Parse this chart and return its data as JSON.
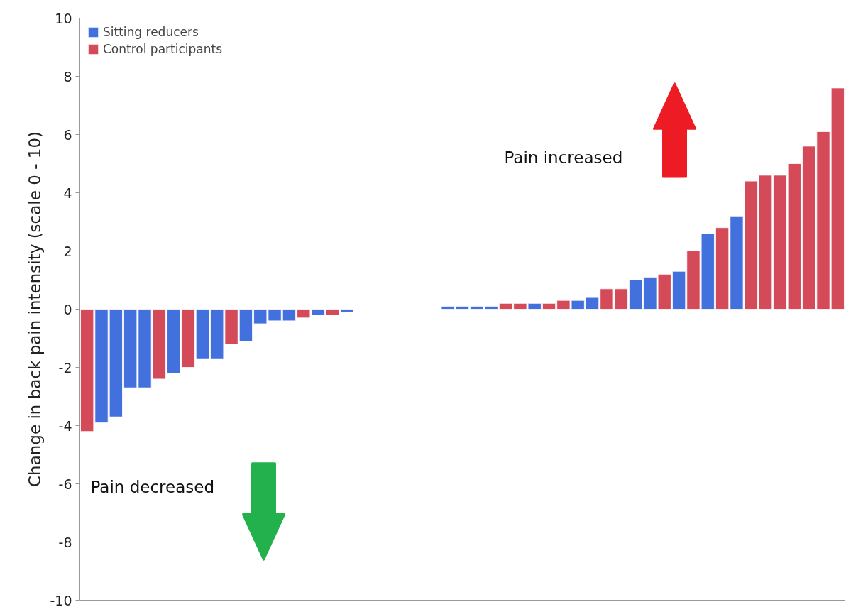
{
  "chart_data": {
    "type": "bar",
    "ylabel": "Change in back pain intensity (scale 0 - 10)",
    "categories": [
      null,
      null,
      null,
      null,
      null,
      null,
      null,
      null,
      null,
      null,
      null,
      null,
      null,
      null,
      null,
      null,
      null,
      null,
      null,
      null,
      null,
      null,
      null,
      null,
      null,
      null,
      null,
      null,
      null,
      null,
      null,
      null,
      null,
      null,
      null,
      null,
      null,
      null,
      null,
      null,
      null,
      null,
      null,
      null,
      null,
      null,
      null,
      null,
      null,
      null,
      null,
      null,
      null
    ],
    "series": [
      {
        "name": "Sitting reducers",
        "color": "#4270dd",
        "values": [
          null,
          -3.9,
          -3.7,
          -2.7,
          -2.7,
          null,
          -2.2,
          null,
          -1.7,
          -1.7,
          null,
          -1.1,
          -0.5,
          -0.4,
          -0.4,
          null,
          -0.2,
          null,
          -0.1,
          null,
          null,
          null,
          null,
          null,
          null,
          0.1,
          0.1,
          0.1,
          0.1,
          null,
          null,
          0.2,
          null,
          null,
          0.3,
          0.4,
          null,
          null,
          1.0,
          1.1,
          null,
          1.3,
          null,
          2.6,
          null,
          3.2,
          null,
          null,
          null,
          null,
          null,
          null,
          null
        ]
      },
      {
        "name": "Control participants",
        "color": "#d44a58",
        "values": [
          -4.2,
          null,
          null,
          null,
          null,
          -2.4,
          null,
          -2.0,
          null,
          null,
          -1.2,
          null,
          null,
          null,
          null,
          -0.3,
          null,
          -0.2,
          null,
          null,
          null,
          null,
          null,
          null,
          null,
          null,
          null,
          null,
          null,
          0.2,
          0.2,
          null,
          0.2,
          0.3,
          null,
          null,
          0.7,
          0.7,
          null,
          null,
          1.2,
          null,
          2.0,
          null,
          2.8,
          null,
          4.4,
          4.6,
          4.6,
          5.0,
          5.6,
          6.1,
          7.6
        ]
      }
    ],
    "annotations": [
      "Pain increased",
      "Pain decreased"
    ],
    "ylim": [
      -10,
      10
    ],
    "yticks": [
      -10,
      -8,
      -6,
      -4,
      -2,
      0,
      2,
      4,
      6,
      8,
      10
    ],
    "grid": false,
    "legend": "top left",
    "tick_labels": "y"
  }
}
